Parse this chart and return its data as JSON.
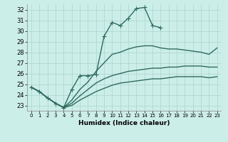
{
  "xlabel": "Humidex (Indice chaleur)",
  "background_color": "#cceee8",
  "line_color": "#2e6b5e",
  "xlim": [
    -0.5,
    23.5
  ],
  "ylim": [
    22.5,
    32.5
  ],
  "xticks": [
    0,
    1,
    2,
    3,
    4,
    5,
    6,
    7,
    8,
    9,
    10,
    11,
    12,
    13,
    14,
    15,
    16,
    17,
    18,
    19,
    20,
    21,
    22,
    23
  ],
  "yticks": [
    23,
    24,
    25,
    26,
    27,
    28,
    29,
    30,
    31,
    32
  ],
  "series": [
    {
      "x": [
        0,
        1,
        2,
        3,
        4,
        5,
        6,
        7,
        8,
        9,
        10,
        11,
        12,
        13,
        14,
        15,
        16,
        17,
        18,
        19,
        20,
        21,
        22,
        23
      ],
      "y": [
        24.7,
        24.3,
        23.7,
        23.2,
        22.8,
        24.5,
        25.8,
        25.8,
        25.9,
        29.5,
        30.8,
        30.5,
        31.2,
        32.1,
        32.2,
        30.5,
        30.3,
        null,
        null,
        null,
        null,
        null,
        null,
        null
      ],
      "marker": "+",
      "markersize": 4,
      "linewidth": 1.0
    },
    {
      "x": [
        0,
        1,
        2,
        3,
        4,
        5,
        6,
        7,
        8,
        9,
        10,
        11,
        12,
        13,
        14,
        15,
        16,
        17,
        18,
        19,
        20,
        21,
        22,
        23
      ],
      "y": [
        24.7,
        24.3,
        23.7,
        23.2,
        22.8,
        23.5,
        24.5,
        25.2,
        26.2,
        27.0,
        27.8,
        28.0,
        28.3,
        28.5,
        28.6,
        28.6,
        28.4,
        28.3,
        28.3,
        28.2,
        28.1,
        28.0,
        27.8,
        28.4
      ],
      "marker": null,
      "linewidth": 1.0
    },
    {
      "x": [
        0,
        1,
        2,
        3,
        4,
        5,
        6,
        7,
        8,
        9,
        10,
        11,
        12,
        13,
        14,
        15,
        16,
        17,
        18,
        19,
        20,
        21,
        22,
        23
      ],
      "y": [
        24.7,
        24.3,
        23.7,
        23.2,
        22.8,
        23.2,
        23.9,
        24.5,
        25.1,
        25.5,
        25.8,
        26.0,
        26.2,
        26.3,
        26.4,
        26.5,
        26.5,
        26.6,
        26.6,
        26.7,
        26.7,
        26.7,
        26.6,
        26.6
      ],
      "marker": null,
      "linewidth": 1.0
    },
    {
      "x": [
        0,
        1,
        2,
        3,
        4,
        5,
        6,
        7,
        8,
        9,
        10,
        11,
        12,
        13,
        14,
        15,
        16,
        17,
        18,
        19,
        20,
        21,
        22,
        23
      ],
      "y": [
        24.7,
        24.3,
        23.7,
        23.2,
        22.8,
        23.0,
        23.5,
        23.9,
        24.3,
        24.6,
        24.9,
        25.1,
        25.2,
        25.3,
        25.4,
        25.5,
        25.5,
        25.6,
        25.7,
        25.7,
        25.7,
        25.7,
        25.6,
        25.7
      ],
      "marker": null,
      "linewidth": 1.0
    }
  ]
}
